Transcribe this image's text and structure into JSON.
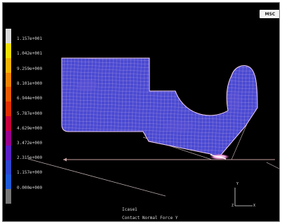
{
  "logo": {
    "text": "MSC"
  },
  "legend": {
    "values": [
      "1.157e+001",
      "1.042e+001",
      "9.259e+000",
      "8.101e+000",
      "6.944e+000",
      "5.787e+000",
      "4.629e+000",
      "3.472e+000",
      "2.315e+000",
      "1.157e+000",
      "0.000e+000"
    ],
    "colors": [
      "#d9d9d9",
      "#f0e000",
      "#f2b400",
      "#ee8400",
      "#e85a00",
      "#e03000",
      "#c80040",
      "#9a0090",
      "#5a20c8",
      "#2e46d0",
      "#1e5ad8",
      "#777777"
    ]
  },
  "footer": {
    "increment": "Icase1",
    "result": "Contact Normal Force Y"
  },
  "axes": {
    "y": "Y",
    "x": "X",
    "z": "Z"
  },
  "mesh": {
    "fill": "#4a4ad2",
    "grid": "#e8c8e8"
  }
}
